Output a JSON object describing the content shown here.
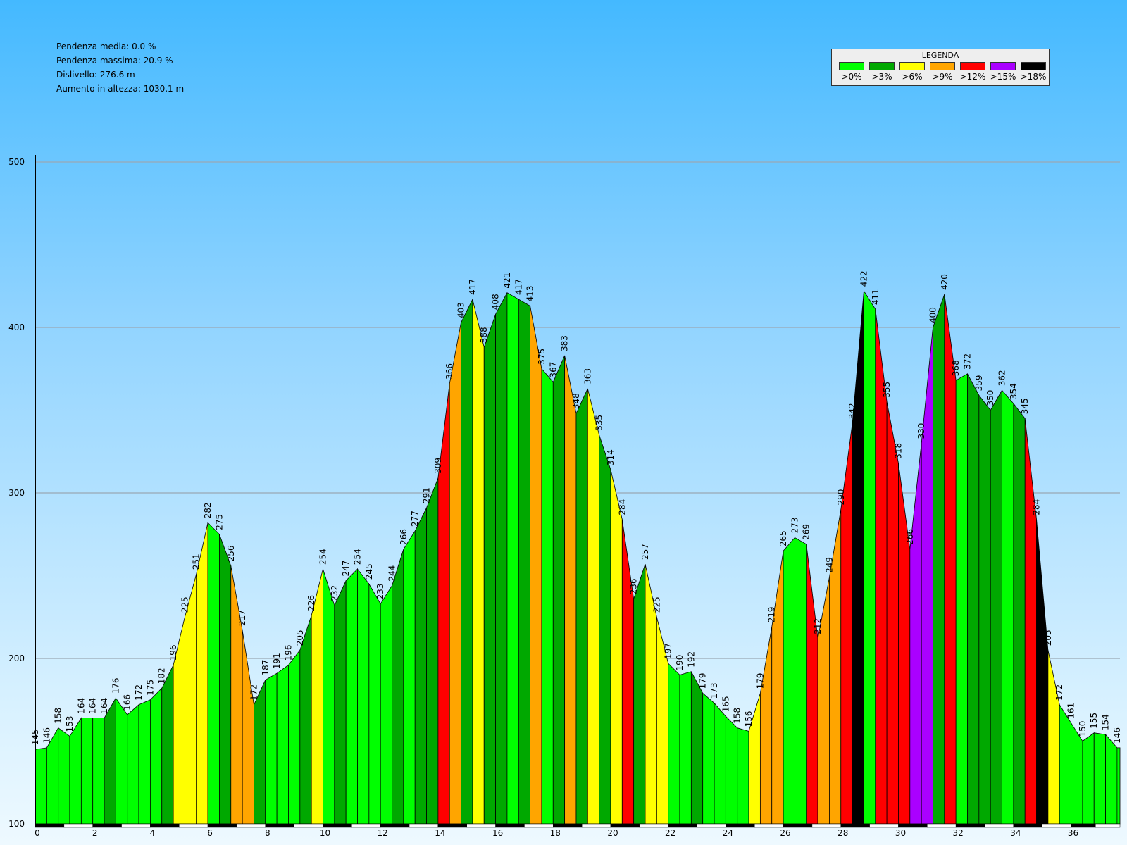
{
  "stats": [
    "Pendenza media: 0.0 %",
    "Pendenza massima: 20.9 %",
    "Dislivello: 276.6 m",
    "Aumento in altezza: 1030.1 m"
  ],
  "legend": {
    "title": "LEGENDA",
    "items": [
      {
        "label": ">0%",
        "color": "#00ff00"
      },
      {
        "label": ">3%",
        "color": "#00a800"
      },
      {
        "label": ">6%",
        "color": "#ffff00"
      },
      {
        "label": ">9%",
        "color": "#ffa500"
      },
      {
        "label": ">12%",
        "color": "#ff0000"
      },
      {
        "label": ">15%",
        "color": "#aa00ff"
      },
      {
        "label": ">18%",
        "color": "#000000"
      }
    ]
  },
  "chart_data": {
    "type": "area",
    "xlim": [
      0,
      37.7
    ],
    "ylim": [
      100,
      500
    ],
    "x_ticks": [
      0,
      2,
      4,
      6,
      8,
      10,
      12,
      14,
      16,
      18,
      20,
      22,
      24,
      26,
      28,
      30,
      32,
      34,
      36
    ],
    "y_ticks": [
      100,
      200,
      300,
      400,
      500
    ],
    "grid": true,
    "segment_colors": [
      "#00ff00",
      "#00a800",
      "#ffff00",
      "#ffa500",
      "#ff0000",
      "#aa00ff",
      "#000000"
    ],
    "points": [
      {
        "x": 0.0,
        "y": 145,
        "c": 0
      },
      {
        "x": 0.4,
        "y": 146,
        "c": 0
      },
      {
        "x": 0.8,
        "y": 158,
        "c": 0
      },
      {
        "x": 1.2,
        "y": 153,
        "c": 0
      },
      {
        "x": 1.6,
        "y": 164,
        "c": 0
      },
      {
        "x": 2.0,
        "y": 164,
        "c": 0
      },
      {
        "x": 2.4,
        "y": 164,
        "c": 0
      },
      {
        "x": 2.8,
        "y": 176,
        "c": 1
      },
      {
        "x": 3.2,
        "y": 166,
        "c": 0
      },
      {
        "x": 3.6,
        "y": 172,
        "c": 0
      },
      {
        "x": 4.0,
        "y": 175,
        "c": 0
      },
      {
        "x": 4.4,
        "y": 182,
        "c": 0
      },
      {
        "x": 4.8,
        "y": 196,
        "c": 1
      },
      {
        "x": 5.2,
        "y": 225,
        "c": 2
      },
      {
        "x": 5.6,
        "y": 251,
        "c": 2
      },
      {
        "x": 6.0,
        "y": 282,
        "c": 2
      },
      {
        "x": 6.4,
        "y": 275,
        "c": 0
      },
      {
        "x": 6.8,
        "y": 256,
        "c": 1
      },
      {
        "x": 7.2,
        "y": 217,
        "c": 3
      },
      {
        "x": 7.6,
        "y": 172,
        "c": 3
      },
      {
        "x": 8.0,
        "y": 187,
        "c": 1
      },
      {
        "x": 8.4,
        "y": 191,
        "c": 0
      },
      {
        "x": 8.8,
        "y": 196,
        "c": 0
      },
      {
        "x": 9.2,
        "y": 205,
        "c": 0
      },
      {
        "x": 9.6,
        "y": 226,
        "c": 1
      },
      {
        "x": 10.0,
        "y": 254,
        "c": 2
      },
      {
        "x": 10.4,
        "y": 232,
        "c": 0
      },
      {
        "x": 10.8,
        "y": 247,
        "c": 1
      },
      {
        "x": 11.2,
        "y": 254,
        "c": 0
      },
      {
        "x": 11.6,
        "y": 245,
        "c": 0
      },
      {
        "x": 12.0,
        "y": 233,
        "c": 0
      },
      {
        "x": 12.4,
        "y": 244,
        "c": 0
      },
      {
        "x": 12.8,
        "y": 266,
        "c": 1
      },
      {
        "x": 13.2,
        "y": 277,
        "c": 0
      },
      {
        "x": 13.6,
        "y": 291,
        "c": 1
      },
      {
        "x": 14.0,
        "y": 309,
        "c": 1
      },
      {
        "x": 14.4,
        "y": 366,
        "c": 4
      },
      {
        "x": 14.8,
        "y": 403,
        "c": 3
      },
      {
        "x": 15.2,
        "y": 417,
        "c": 1
      },
      {
        "x": 15.6,
        "y": 388,
        "c": 2
      },
      {
        "x": 16.0,
        "y": 408,
        "c": 1
      },
      {
        "x": 16.4,
        "y": 421,
        "c": 1
      },
      {
        "x": 16.8,
        "y": 417,
        "c": 0
      },
      {
        "x": 17.2,
        "y": 413,
        "c": 1
      },
      {
        "x": 17.6,
        "y": 375,
        "c": 3
      },
      {
        "x": 18.0,
        "y": 367,
        "c": 0
      },
      {
        "x": 18.4,
        "y": 383,
        "c": 1
      },
      {
        "x": 18.8,
        "y": 348,
        "c": 3
      },
      {
        "x": 19.2,
        "y": 363,
        "c": 1
      },
      {
        "x": 19.6,
        "y": 335,
        "c": 2
      },
      {
        "x": 20.0,
        "y": 314,
        "c": 1
      },
      {
        "x": 20.4,
        "y": 284,
        "c": 2
      },
      {
        "x": 20.8,
        "y": 236,
        "c": 4
      },
      {
        "x": 21.2,
        "y": 257,
        "c": 1
      },
      {
        "x": 21.6,
        "y": 225,
        "c": 2
      },
      {
        "x": 22.0,
        "y": 197,
        "c": 2
      },
      {
        "x": 22.4,
        "y": 190,
        "c": 0
      },
      {
        "x": 22.8,
        "y": 192,
        "c": 0
      },
      {
        "x": 23.2,
        "y": 179,
        "c": 1
      },
      {
        "x": 23.6,
        "y": 173,
        "c": 0
      },
      {
        "x": 24.0,
        "y": 165,
        "c": 0
      },
      {
        "x": 24.4,
        "y": 158,
        "c": 0
      },
      {
        "x": 24.8,
        "y": 156,
        "c": 0
      },
      {
        "x": 25.2,
        "y": 179,
        "c": 2
      },
      {
        "x": 25.6,
        "y": 219,
        "c": 3
      },
      {
        "x": 26.0,
        "y": 265,
        "c": 3
      },
      {
        "x": 26.4,
        "y": 273,
        "c": 0
      },
      {
        "x": 26.8,
        "y": 269,
        "c": 0
      },
      {
        "x": 27.2,
        "y": 212,
        "c": 4
      },
      {
        "x": 27.6,
        "y": 249,
        "c": 3
      },
      {
        "x": 28.0,
        "y": 290,
        "c": 3
      },
      {
        "x": 28.4,
        "y": 342,
        "c": 4
      },
      {
        "x": 28.8,
        "y": 422,
        "c": 6
      },
      {
        "x": 29.2,
        "y": 411,
        "c": 0
      },
      {
        "x": 29.6,
        "y": 355,
        "c": 4
      },
      {
        "x": 30.0,
        "y": 318,
        "c": 4
      },
      {
        "x": 30.4,
        "y": 266,
        "c": 4
      },
      {
        "x": 30.8,
        "y": 330,
        "c": 5
      },
      {
        "x": 31.2,
        "y": 400,
        "c": 5
      },
      {
        "x": 31.6,
        "y": 420,
        "c": 1
      },
      {
        "x": 32.0,
        "y": 368,
        "c": 4
      },
      {
        "x": 32.4,
        "y": 372,
        "c": 0
      },
      {
        "x": 32.8,
        "y": 359,
        "c": 1
      },
      {
        "x": 33.2,
        "y": 350,
        "c": 1
      },
      {
        "x": 33.6,
        "y": 362,
        "c": 1
      },
      {
        "x": 34.0,
        "y": 354,
        "c": 0
      },
      {
        "x": 34.4,
        "y": 345,
        "c": 1
      },
      {
        "x": 34.8,
        "y": 284,
        "c": 4
      },
      {
        "x": 35.2,
        "y": 205,
        "c": 6
      },
      {
        "x": 35.6,
        "y": 172,
        "c": 2
      },
      {
        "x": 36.0,
        "y": 161,
        "c": 0
      },
      {
        "x": 36.4,
        "y": 150,
        "c": 0
      },
      {
        "x": 36.8,
        "y": 155,
        "c": 0
      },
      {
        "x": 37.2,
        "y": 154,
        "c": 0
      },
      {
        "x": 37.6,
        "y": 146,
        "c": 0
      },
      {
        "x": 38.0,
        "y": 146,
        "c": 0
      }
    ]
  }
}
